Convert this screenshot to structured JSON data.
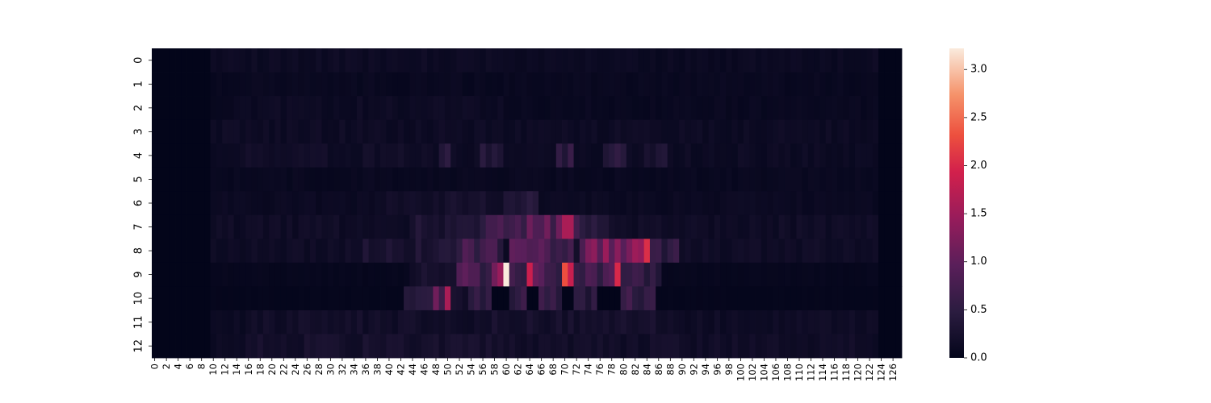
{
  "chart_data": {
    "type": "heatmap",
    "title": "",
    "xlabel": "",
    "ylabel": "",
    "x_categories": 128,
    "x_tick_labels": [
      "0",
      "2",
      "4",
      "6",
      "8",
      "10",
      "12",
      "14",
      "16",
      "18",
      "20",
      "22",
      "24",
      "26",
      "28",
      "30",
      "32",
      "34",
      "36",
      "38",
      "40",
      "42",
      "44",
      "46",
      "48",
      "50",
      "52",
      "54",
      "56",
      "58",
      "60",
      "62",
      "64",
      "66",
      "68",
      "70",
      "72",
      "74",
      "76",
      "78",
      "80",
      "82",
      "84",
      "86",
      "88",
      "90",
      "92",
      "94",
      "96",
      "98",
      "100",
      "102",
      "104",
      "106",
      "108",
      "110",
      "112",
      "114",
      "116",
      "118",
      "120",
      "122",
      "124",
      "126"
    ],
    "y_tick_labels": [
      "0",
      "1",
      "2",
      "3",
      "4",
      "5",
      "6",
      "7",
      "8",
      "9",
      "10",
      "11",
      "12"
    ],
    "colorbar": {
      "min": 0.0,
      "max": 3.22,
      "tick_labels": [
        "0.0",
        "0.5",
        "1.0",
        "1.5",
        "2.0",
        "2.5",
        "3.0"
      ],
      "tick_values": [
        0.0,
        0.5,
        1.0,
        1.5,
        2.0,
        2.5,
        3.0
      ],
      "colormap": "rocket"
    },
    "notable_values": [
      {
        "row": 9,
        "col": 60,
        "value": 3.22
      },
      {
        "row": 9,
        "col": 79,
        "value": 2.0
      },
      {
        "row": 9,
        "col": 71,
        "value": 1.85
      },
      {
        "row": 7,
        "col": 70,
        "value": 1.6
      },
      {
        "row": 10,
        "col": 50,
        "value": 1.6
      },
      {
        "row": 8,
        "col": 82,
        "value": 1.5
      }
    ],
    "rows": [
      {
        "row": 0,
        "base": 0.12,
        "spans": [
          [
            10,
            16,
            0.14
          ],
          [
            16,
            60,
            0.12
          ],
          [
            60,
            118,
            0.1
          ]
        ]
      },
      {
        "row": 1,
        "base": 0.06,
        "spans": [
          [
            14,
            118,
            0.08
          ]
        ]
      },
      {
        "row": 2,
        "base": 0.08,
        "spans": [
          [
            14,
            60,
            0.12
          ],
          [
            60,
            120,
            0.08
          ]
        ]
      },
      {
        "row": 3,
        "base": 0.1,
        "spans": [
          [
            12,
            122,
            0.13
          ]
        ]
      },
      {
        "row": 4,
        "base": 0.12,
        "spans": [
          [
            16,
            48,
            0.16
          ],
          [
            49,
            51,
            0.55
          ],
          [
            56,
            60,
            0.4
          ],
          [
            69,
            72,
            0.45
          ],
          [
            77,
            81,
            0.5
          ],
          [
            84,
            88,
            0.3
          ]
        ]
      },
      {
        "row": 5,
        "base": 0.07,
        "spans": [
          [
            16,
            122,
            0.08
          ]
        ]
      },
      {
        "row": 6,
        "base": 0.1,
        "spans": [
          [
            40,
            60,
            0.22
          ],
          [
            60,
            66,
            0.35
          ]
        ]
      },
      {
        "row": 7,
        "base": 0.15,
        "spans": [
          [
            44,
            56,
            0.3
          ],
          [
            56,
            64,
            0.65
          ],
          [
            64,
            70,
            0.85
          ],
          [
            70,
            72,
            1.6
          ],
          [
            72,
            78,
            0.55
          ]
        ]
      },
      {
        "row": 8,
        "base": 0.15,
        "spans": [
          [
            36,
            52,
            0.3
          ],
          [
            52,
            60,
            0.65
          ],
          [
            61,
            66,
            1.05
          ],
          [
            66,
            72,
            0.9
          ],
          [
            73,
            79,
            1.1
          ],
          [
            79,
            81,
            1.3
          ],
          [
            81,
            85,
            1.5
          ],
          [
            85,
            90,
            0.55
          ]
        ]
      },
      {
        "row": 9,
        "base": 0.05,
        "spans": [
          [
            44,
            52,
            0.25
          ],
          [
            52,
            56,
            0.9
          ],
          [
            56,
            58,
            0.55
          ],
          [
            58,
            60,
            1.1
          ],
          [
            60,
            61,
            3.22
          ],
          [
            61,
            64,
            0.6
          ],
          [
            64,
            66,
            1.4
          ],
          [
            66,
            70,
            0.8
          ],
          [
            70,
            72,
            1.85
          ],
          [
            72,
            78,
            0.7
          ],
          [
            78,
            79,
            1.2
          ],
          [
            79,
            80,
            2.0
          ],
          [
            80,
            87,
            0.55
          ]
        ]
      },
      {
        "row": 10,
        "base": 0.03,
        "spans": [
          [
            43,
            46,
            0.35
          ],
          [
            46,
            48,
            0.65
          ],
          [
            48,
            50,
            0.95
          ],
          [
            50,
            51,
            1.6
          ],
          [
            51,
            54,
            0.2
          ],
          [
            54,
            58,
            0.45
          ],
          [
            58,
            61,
            0.0
          ],
          [
            61,
            64,
            0.5
          ],
          [
            64,
            66,
            0.0
          ],
          [
            66,
            70,
            0.55
          ],
          [
            70,
            72,
            0.0
          ],
          [
            72,
            76,
            0.4
          ],
          [
            76,
            78,
            0.0
          ],
          [
            78,
            80,
            0.0
          ],
          [
            80,
            86,
            0.55
          ]
        ]
      },
      {
        "row": 11,
        "base": 0.12,
        "spans": [
          [
            16,
            56,
            0.18
          ],
          [
            56,
            86,
            0.22
          ],
          [
            86,
            122,
            0.14
          ]
        ]
      },
      {
        "row": 12,
        "base": 0.12,
        "spans": [
          [
            16,
            60,
            0.22
          ],
          [
            60,
            90,
            0.18
          ],
          [
            90,
            124,
            0.16
          ]
        ]
      }
    ],
    "zero_columns": [
      [
        0,
        10
      ]
    ],
    "zero_columns_right": [
      [
        124,
        128
      ]
    ]
  }
}
